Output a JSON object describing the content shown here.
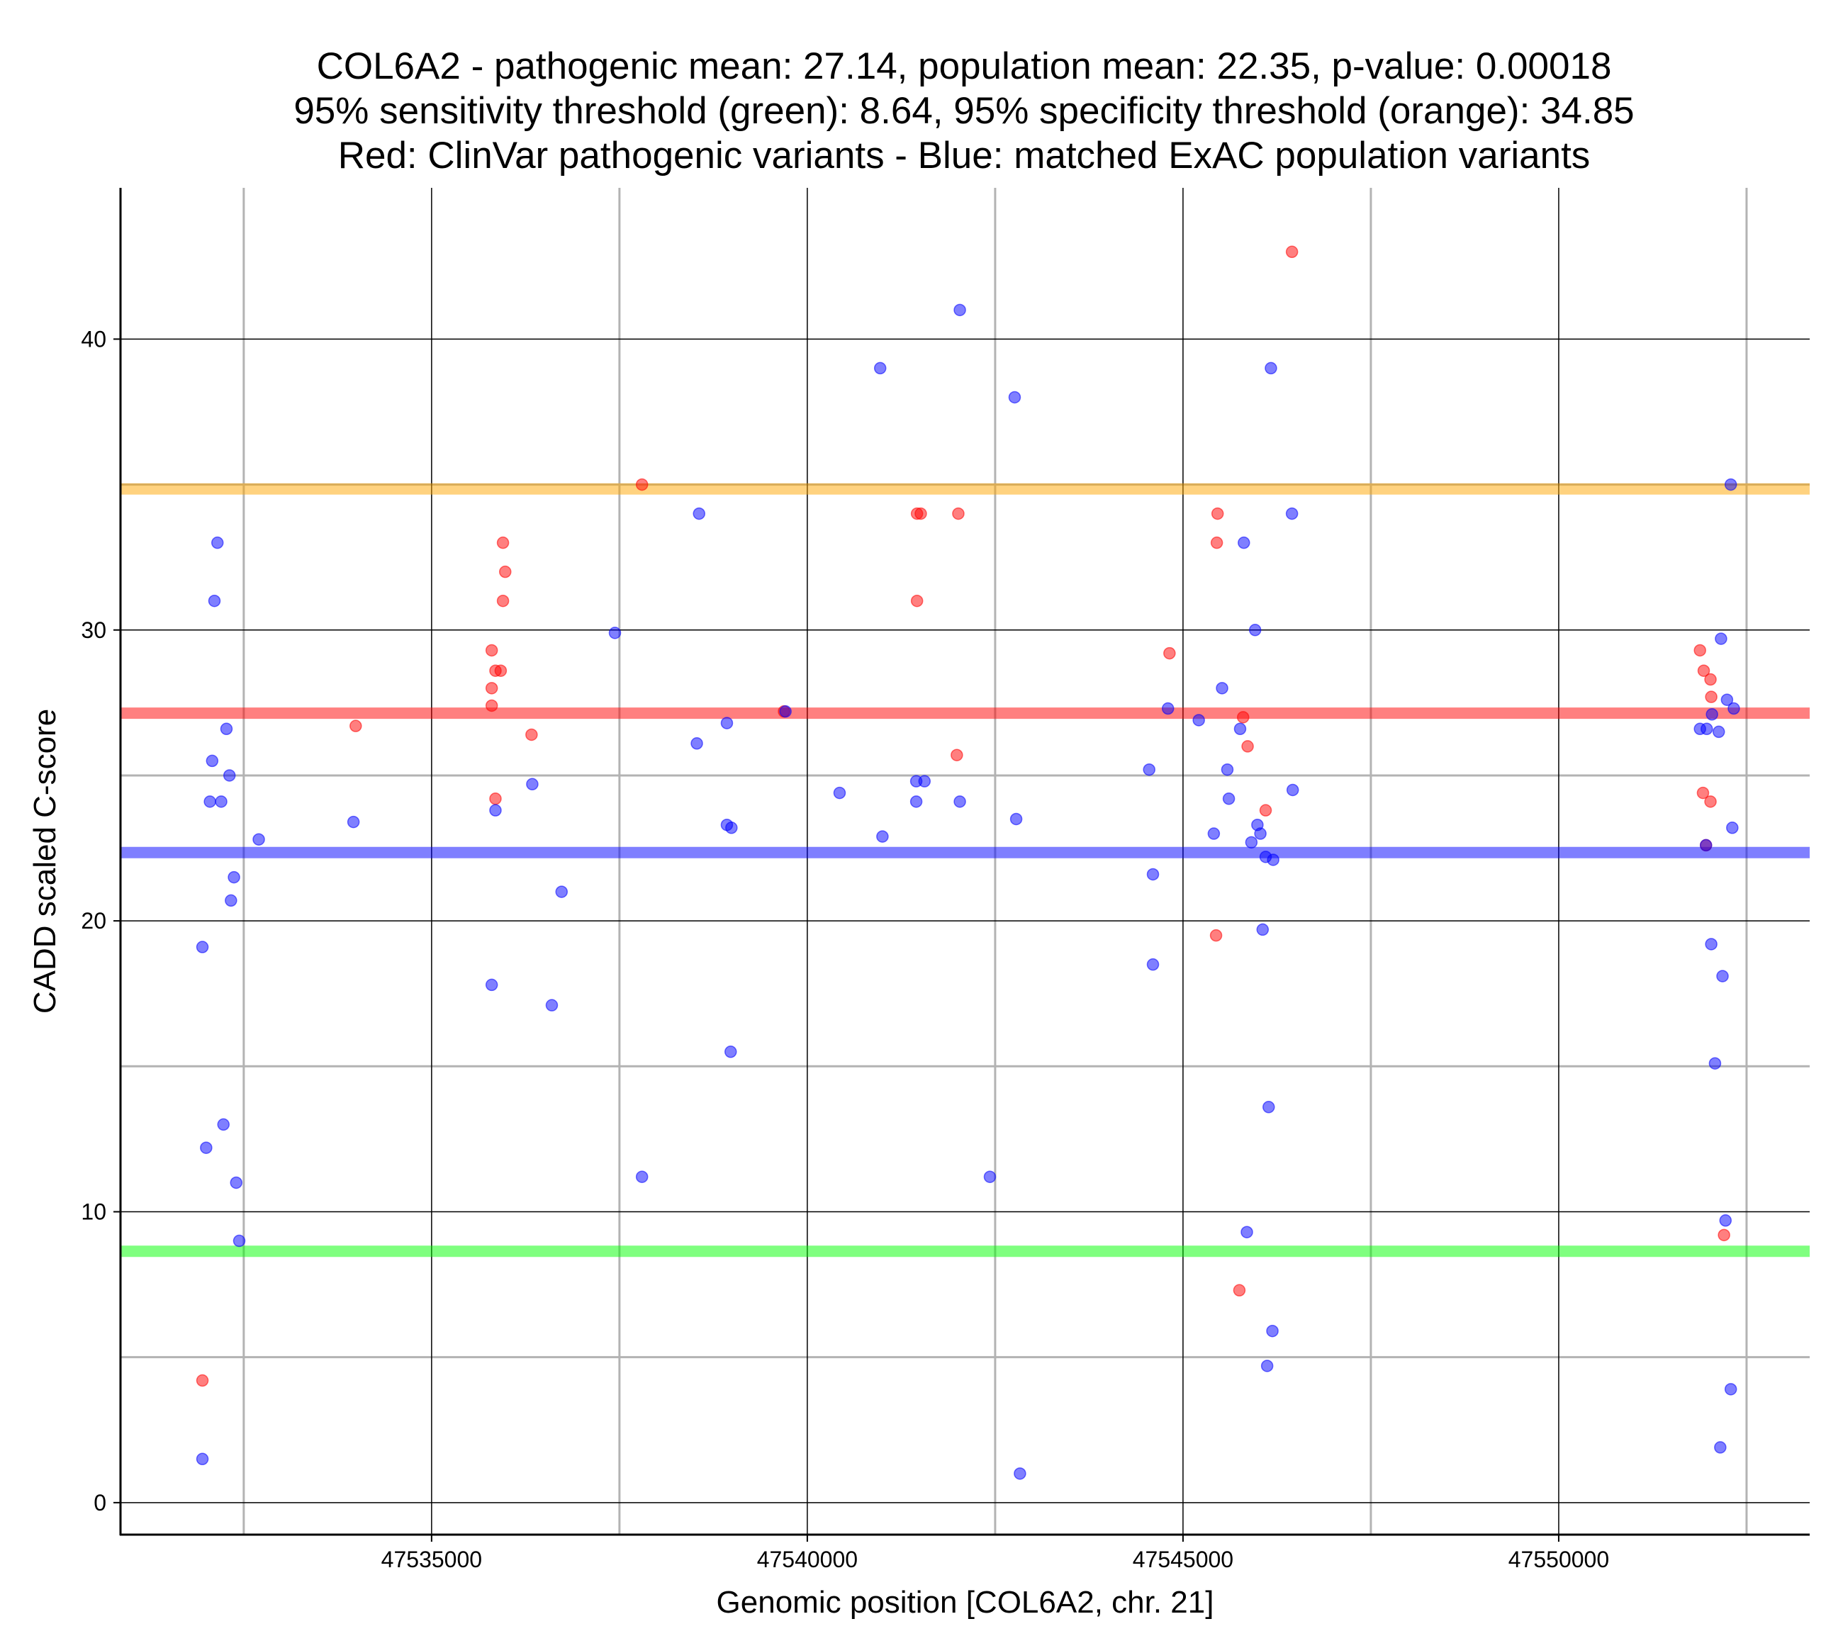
{
  "chart_data": {
    "type": "scatter",
    "title_lines": [
      "COL6A2 - pathogenic mean: 27.14, population mean: 22.35, p-value: 0.00018",
      "95% sensitivity threshold (green): 8.64, 95% specificity threshold (orange): 34.85",
      "Red: ClinVar pathogenic variants - Blue: matched ExAC population variants"
    ],
    "xlabel": "Genomic position [COL6A2, chr. 21]",
    "ylabel": "CADD scaled C-score",
    "xlim": [
      47530860,
      47553340
    ],
    "ylim": [
      -1.1,
      45.2
    ],
    "x_major_ticks": [
      47535000,
      47540000,
      47545000,
      47550000
    ],
    "x_tick_labels": [
      "47535000",
      "47540000",
      "47545000",
      "47550000"
    ],
    "x_minor_grid": [
      47532500,
      47537500,
      47542500,
      47547500,
      47552500
    ],
    "y_major_ticks": [
      0,
      10,
      20,
      30,
      40
    ],
    "y_tick_labels": [
      "0",
      "10",
      "20",
      "30",
      "40"
    ],
    "y_minor_grid": [
      5,
      15,
      25,
      35
    ],
    "reference_lines": [
      {
        "name": "specificity threshold",
        "value": 34.85,
        "color": "#FFA500"
      },
      {
        "name": "pathogenic mean",
        "value": 27.14,
        "color": "#FF0000"
      },
      {
        "name": "population mean",
        "value": 22.35,
        "color": "#0000FF"
      },
      {
        "name": "sensitivity threshold",
        "value": 8.64,
        "color": "#00FF00"
      }
    ],
    "series": [
      {
        "name": "ClinVar pathogenic variants",
        "color": "#FF0000",
        "points": [
          [
            47531950,
            4.2
          ],
          [
            47533990,
            26.7
          ],
          [
            47535800,
            29.3
          ],
          [
            47535850,
            28.6
          ],
          [
            47535920,
            28.6
          ],
          [
            47535800,
            28.0
          ],
          [
            47535800,
            27.4
          ],
          [
            47535850,
            24.2
          ],
          [
            47535950,
            33.0
          ],
          [
            47535980,
            32.0
          ],
          [
            47535950,
            31.0
          ],
          [
            47536330,
            26.4
          ],
          [
            47537800,
            35.0
          ],
          [
            47539690,
            27.2
          ],
          [
            47541460,
            34.0
          ],
          [
            47541510,
            34.0
          ],
          [
            47541460,
            31.0
          ],
          [
            47542010,
            34.0
          ],
          [
            47541990,
            25.7
          ],
          [
            47544820,
            29.2
          ],
          [
            47545460,
            34.0
          ],
          [
            47545450,
            33.0
          ],
          [
            47545440,
            19.5
          ],
          [
            47545800,
            27.0
          ],
          [
            47545860,
            26.0
          ],
          [
            47546100,
            23.8
          ],
          [
            47545750,
            7.3
          ],
          [
            47546450,
            43.0
          ],
          [
            47551880,
            29.3
          ],
          [
            47551930,
            28.6
          ],
          [
            47552020,
            28.3
          ],
          [
            47552030,
            27.7
          ],
          [
            47551920,
            24.4
          ],
          [
            47552020,
            24.1
          ],
          [
            47551960,
            22.6
          ],
          [
            47552200,
            9.2
          ]
        ]
      },
      {
        "name": "matched ExAC population variants",
        "color": "#0000FF",
        "points": [
          [
            47531950,
            19.1
          ],
          [
            47531950,
            1.5
          ],
          [
            47532000,
            12.2
          ],
          [
            47532050,
            24.1
          ],
          [
            47532080,
            25.5
          ],
          [
            47532110,
            31.0
          ],
          [
            47532150,
            33.0
          ],
          [
            47532200,
            24.1
          ],
          [
            47532230,
            13.0
          ],
          [
            47532270,
            26.6
          ],
          [
            47532310,
            25.0
          ],
          [
            47532330,
            20.7
          ],
          [
            47532370,
            21.5
          ],
          [
            47532400,
            11.0
          ],
          [
            47532440,
            9.0
          ],
          [
            47532700,
            22.8
          ],
          [
            47533960,
            23.4
          ],
          [
            47535800,
            17.8
          ],
          [
            47535850,
            23.8
          ],
          [
            47536340,
            24.7
          ],
          [
            47536600,
            17.1
          ],
          [
            47536730,
            21.0
          ],
          [
            47537440,
            29.9
          ],
          [
            47537800,
            11.2
          ],
          [
            47538530,
            26.1
          ],
          [
            47538560,
            34.0
          ],
          [
            47538930,
            26.8
          ],
          [
            47538930,
            23.3
          ],
          [
            47538990,
            23.2
          ],
          [
            47538980,
            15.5
          ],
          [
            47539710,
            27.2
          ],
          [
            47540430,
            24.4
          ],
          [
            47540970,
            39.0
          ],
          [
            47541000,
            22.9
          ],
          [
            47541450,
            24.8
          ],
          [
            47541560,
            24.8
          ],
          [
            47541450,
            24.1
          ],
          [
            47542030,
            41.0
          ],
          [
            47542030,
            24.1
          ],
          [
            47542430,
            11.2
          ],
          [
            47542760,
            38.0
          ],
          [
            47542780,
            23.5
          ],
          [
            47542830,
            1.0
          ],
          [
            47544550,
            25.2
          ],
          [
            47544600,
            21.6
          ],
          [
            47544600,
            18.5
          ],
          [
            47544800,
            27.3
          ],
          [
            47545210,
            26.9
          ],
          [
            47545410,
            23.0
          ],
          [
            47545520,
            28.0
          ],
          [
            47545590,
            25.2
          ],
          [
            47545610,
            24.2
          ],
          [
            47545760,
            26.6
          ],
          [
            47545810,
            33.0
          ],
          [
            47545910,
            22.7
          ],
          [
            47545960,
            30.0
          ],
          [
            47545990,
            23.3
          ],
          [
            47546030,
            23.0
          ],
          [
            47546060,
            19.7
          ],
          [
            47546100,
            22.2
          ],
          [
            47546200,
            22.1
          ],
          [
            47545850,
            9.3
          ],
          [
            47546140,
            13.6
          ],
          [
            47546190,
            5.9
          ],
          [
            47546120,
            4.7
          ],
          [
            47546170,
            39.0
          ],
          [
            47546450,
            34.0
          ],
          [
            47546460,
            24.5
          ],
          [
            47551880,
            26.6
          ],
          [
            47551970,
            26.6
          ],
          [
            47552040,
            27.1
          ],
          [
            47552130,
            26.5
          ],
          [
            47552160,
            29.7
          ],
          [
            47552240,
            27.6
          ],
          [
            47552330,
            27.3
          ],
          [
            47551960,
            22.6
          ],
          [
            47552310,
            23.2
          ],
          [
            47552030,
            19.2
          ],
          [
            47552180,
            18.1
          ],
          [
            47552080,
            15.1
          ],
          [
            47552220,
            9.7
          ],
          [
            47552290,
            35.0
          ],
          [
            47552290,
            3.9
          ],
          [
            47552150,
            1.9
          ]
        ]
      }
    ]
  }
}
